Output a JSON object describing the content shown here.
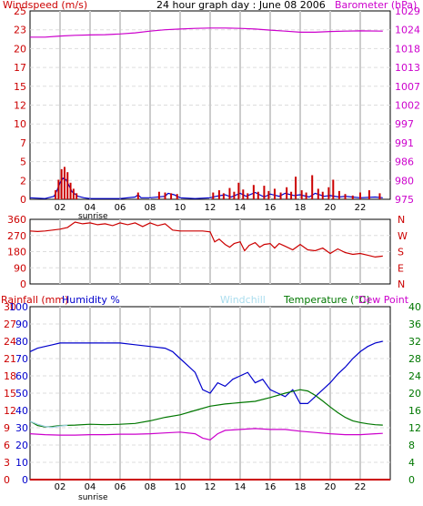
{
  "header": {
    "windspeed_label": "Windspeed (m/s)",
    "title": "24 hour graph day : June 08 2006",
    "barometer_label": "Barometer (hPa)"
  },
  "panel2": {
    "labels": [
      "N",
      "W",
      "S",
      "E",
      "N"
    ]
  },
  "panel3": {
    "rainfall_label": "Rainfall (mm)",
    "humidity_label": "Humidity %",
    "windchill_label": "Windchill",
    "temperature_label": "Temperature (°C)",
    "dewpoint_label": "Dew Point"
  },
  "sunrise_label": "sunrise",
  "colors": {
    "windspeed": "#0000cc",
    "gust": "#cc0000",
    "barometer": "#cc00cc",
    "direction": "#cc0000",
    "humidity": "#0000cc",
    "temperature": "#007700",
    "dewpoint": "#cc00cc",
    "windchill": "#99ccdd",
    "rain": "#cc0000",
    "grid": "#cccccc"
  },
  "chart_data": [
    {
      "type": "line",
      "title": "24 hour graph day : June 08 2006",
      "x_ticks": [
        "02",
        "04",
        "06",
        "08",
        "10",
        "12",
        "14",
        "16",
        "18",
        "20",
        "22"
      ],
      "x_range": [
        0,
        24
      ],
      "left_axis": {
        "label": "Windspeed (m/s)",
        "ticks": [
          "0",
          "2",
          "5",
          "7",
          "10",
          "12",
          "15",
          "17",
          "20",
          "23",
          "25"
        ],
        "range": [
          0,
          25
        ]
      },
      "right_axis": {
        "label": "Barometer (hPa)",
        "ticks": [
          "975",
          "980",
          "986",
          "991",
          "997",
          "1002",
          "1007",
          "1013",
          "1018",
          "1024",
          "1029"
        ],
        "range": [
          975,
          1029
        ]
      },
      "series": [
        {
          "name": "Barometer",
          "axis": "right",
          "x": [
            0,
            1,
            2,
            3,
            4,
            5,
            6,
            7,
            8,
            9,
            10,
            11,
            12,
            13,
            14,
            15,
            16,
            17,
            18,
            19,
            20,
            21,
            22,
            23.5
          ],
          "y": [
            1021.5,
            1021.5,
            1021.8,
            1022.0,
            1022.1,
            1022.2,
            1022.4,
            1022.7,
            1023.2,
            1023.6,
            1023.8,
            1024.0,
            1024.1,
            1024.1,
            1024.0,
            1023.8,
            1023.5,
            1023.2,
            1022.9,
            1022.9,
            1023.1,
            1023.2,
            1023.3,
            1023.2
          ]
        },
        {
          "name": "Windspeed",
          "axis": "left",
          "x": [
            0,
            1,
            1.6,
            1.8,
            2,
            2.2,
            2.4,
            2.6,
            2.8,
            3.2,
            3.6,
            4,
            6,
            7,
            7.2,
            7.4,
            8,
            9,
            9.2,
            9.6,
            10,
            11,
            12,
            12.4,
            13,
            13.4,
            14,
            14.4,
            15,
            15.6,
            16,
            16.6,
            17,
            17.6,
            18,
            18.6,
            19,
            19.6,
            20,
            20.6,
            21,
            22,
            23,
            23.5
          ],
          "y": [
            0.2,
            0.1,
            0.4,
            1.2,
            2.2,
            2.8,
            2.6,
            1.8,
            1.0,
            0.4,
            0.2,
            0.1,
            0.1,
            0.3,
            0.6,
            0.2,
            0.2,
            0.4,
            0.8,
            0.6,
            0.2,
            0.1,
            0.2,
            0.4,
            0.6,
            0.3,
            0.8,
            0.4,
            0.9,
            0.3,
            0.7,
            0.4,
            0.8,
            0.5,
            0.6,
            0.3,
            0.8,
            0.4,
            0.5,
            0.3,
            0.4,
            0.2,
            0.3,
            0.2
          ]
        },
        {
          "name": "Gust",
          "axis": "left",
          "type": "bar",
          "x": [
            1.7,
            1.9,
            2.1,
            2.3,
            2.5,
            2.7,
            2.9,
            3.1,
            7.2,
            8.6,
            9.0,
            9.4,
            9.8,
            12.2,
            12.6,
            12.9,
            13.3,
            13.6,
            13.9,
            14.2,
            14.5,
            14.9,
            15.2,
            15.6,
            15.9,
            16.3,
            16.7,
            17.1,
            17.4,
            17.7,
            18.1,
            18.4,
            18.8,
            19.2,
            19.5,
            19.9,
            20.2,
            20.6,
            21.0,
            21.5,
            22.0,
            22.6,
            23.3
          ],
          "y": [
            1.2,
            2.6,
            4.0,
            4.3,
            3.6,
            2.2,
            1.4,
            0.8,
            0.9,
            1.0,
            0.9,
            0.8,
            0.7,
            0.9,
            1.2,
            0.8,
            1.5,
            1.0,
            2.2,
            1.3,
            0.8,
            1.9,
            1.0,
            1.8,
            1.1,
            1.4,
            0.9,
            1.6,
            1.0,
            3.0,
            1.2,
            0.9,
            3.2,
            1.4,
            1.0,
            1.6,
            2.6,
            1.1,
            0.7,
            0.5,
            0.9,
            1.2,
            0.8
          ]
        }
      ]
    },
    {
      "type": "line",
      "x_ticks": [
        "02",
        "04",
        "06",
        "08",
        "10",
        "12",
        "14",
        "16",
        "18",
        "20",
        "22"
      ],
      "x_range": [
        0,
        24
      ],
      "left_axis": {
        "ticks": [
          "0",
          "90",
          "180",
          "270",
          "360"
        ],
        "range": [
          0,
          360
        ]
      },
      "right_axis": {
        "ticks": [
          "N",
          "W",
          "S",
          "E",
          "N"
        ]
      },
      "series": [
        {
          "name": "Wind direction",
          "x": [
            0,
            0.5,
            1.0,
            1.5,
            2.0,
            2.5,
            3.0,
            3.5,
            4.0,
            4.5,
            5.0,
            5.5,
            6.0,
            6.5,
            7.0,
            7.5,
            8.0,
            8.5,
            9.0,
            9.5,
            10.0,
            10.5,
            11.0,
            11.5,
            12.0,
            12.3,
            12.6,
            13.0,
            13.3,
            13.6,
            14.0,
            14.3,
            14.6,
            15.0,
            15.3,
            15.6,
            16.0,
            16.3,
            16.6,
            17.0,
            17.5,
            18.0,
            18.5,
            19.0,
            19.5,
            20.0,
            20.5,
            21.0,
            21.5,
            22.0,
            22.5,
            23.0,
            23.5
          ],
          "y": [
            295,
            292,
            295,
            300,
            305,
            315,
            345,
            335,
            340,
            330,
            335,
            325,
            340,
            330,
            340,
            320,
            340,
            325,
            335,
            300,
            295,
            295,
            295,
            295,
            290,
            235,
            250,
            220,
            205,
            225,
            235,
            185,
            215,
            230,
            205,
            220,
            225,
            200,
            225,
            210,
            190,
            220,
            190,
            185,
            200,
            170,
            195,
            175,
            165,
            170,
            160,
            150,
            155
          ]
        }
      ]
    },
    {
      "type": "line",
      "x_ticks": [
        "02",
        "04",
        "06",
        "08",
        "10",
        "12",
        "14",
        "16",
        "18",
        "20",
        "22"
      ],
      "x_range": [
        0,
        24
      ],
      "left_axis_rainfall": {
        "label": "Rainfall (mm)",
        "ticks": [
          "0",
          "3",
          "6",
          "9",
          "12",
          "15",
          "18",
          "21",
          "24",
          "27",
          "30"
        ],
        "range": [
          0,
          30
        ]
      },
      "left_axis_humidity": {
        "label": "Humidity %",
        "ticks": [
          "0",
          "10",
          "20",
          "30",
          "40",
          "50",
          "60",
          "70",
          "80",
          "90",
          "100"
        ],
        "range": [
          0,
          100
        ]
      },
      "right_axis": {
        "label": "Temperature (°C)",
        "ticks": [
          "0",
          "4",
          "8",
          "12",
          "16",
          "20",
          "24",
          "28",
          "32",
          "36",
          "40"
        ],
        "range": [
          0,
          40
        ]
      },
      "series": [
        {
          "name": "Humidity %",
          "axis": "humidity",
          "x": [
            0,
            0.5,
            1.0,
            1.5,
            2.0,
            3.0,
            4.0,
            5.0,
            6.0,
            7.0,
            8.0,
            9.0,
            9.5,
            10.0,
            10.5,
            11.0,
            11.5,
            12.0,
            12.5,
            13.0,
            13.5,
            14.0,
            14.5,
            15.0,
            15.5,
            16.0,
            16.5,
            17.0,
            17.5,
            18.0,
            18.5,
            19.0,
            19.5,
            20.0,
            20.5,
            21.0,
            21.5,
            22.0,
            22.5,
            23.0,
            23.5
          ],
          "y": [
            74,
            76,
            77,
            78,
            79,
            79,
            79,
            79,
            79,
            78,
            77,
            76,
            74,
            70,
            66,
            62,
            52,
            50,
            56,
            54,
            58,
            60,
            62,
            56,
            58,
            52,
            50,
            48,
            52,
            44,
            44,
            48,
            52,
            56,
            61,
            65,
            70,
            74,
            77,
            79,
            80
          ]
        },
        {
          "name": "Temperature",
          "axis": "right",
          "x": [
            0,
            0.5,
            1.0,
            1.5,
            2.0,
            3.0,
            4.0,
            5.0,
            6.0,
            7.0,
            8.0,
            9.0,
            10.0,
            11.0,
            12.0,
            13.0,
            14.0,
            15.0,
            16.0,
            16.5,
            17.0,
            17.5,
            18.0,
            18.5,
            19.0,
            19.5,
            20.0,
            20.5,
            21.0,
            21.5,
            22.0,
            22.5,
            23.0,
            23.5
          ],
          "y": [
            13.5,
            12.5,
            12.2,
            12.3,
            12.5,
            12.6,
            12.8,
            12.7,
            12.8,
            13.0,
            13.6,
            14.4,
            15.0,
            16.0,
            17.0,
            17.5,
            17.8,
            18.1,
            19.0,
            19.5,
            20.0,
            20.4,
            20.8,
            20.5,
            19.5,
            18.2,
            16.8,
            15.5,
            14.4,
            13.6,
            13.2,
            12.9,
            12.7,
            12.6
          ]
        },
        {
          "name": "Dew Point",
          "axis": "right",
          "x": [
            0,
            1,
            2,
            3,
            4,
            5,
            6,
            7,
            8,
            9,
            10,
            11,
            11.5,
            12.0,
            12.5,
            13.0,
            14.0,
            15.0,
            16.0,
            17.0,
            18.0,
            19.0,
            20.0,
            21.0,
            22.0,
            23.0,
            23.5
          ],
          "y": [
            10.6,
            10.4,
            10.3,
            10.3,
            10.4,
            10.4,
            10.5,
            10.5,
            10.6,
            10.8,
            11.0,
            10.6,
            9.6,
            9.2,
            10.6,
            11.4,
            11.6,
            11.8,
            11.6,
            11.6,
            11.2,
            10.9,
            10.6,
            10.4,
            10.4,
            10.6,
            10.7
          ]
        },
        {
          "name": "Windchill",
          "axis": "right",
          "x": [
            0,
            0.5,
            1.0,
            1.5,
            2.0,
            2.5
          ],
          "y": [
            13.5,
            12.8,
            12.3,
            12.1,
            12.4,
            12.6
          ]
        },
        {
          "name": "Rainfall",
          "axis": "rainfall",
          "x": [
            0,
            24
          ],
          "y": [
            0,
            0
          ]
        }
      ]
    }
  ]
}
